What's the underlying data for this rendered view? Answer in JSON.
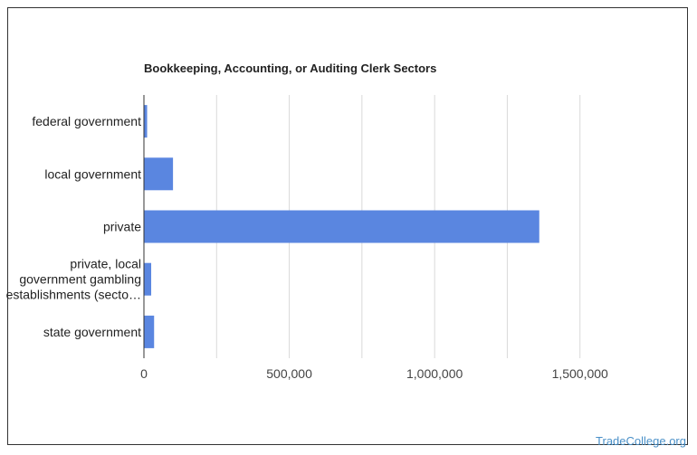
{
  "chart_data": {
    "type": "bar",
    "orientation": "horizontal",
    "title": "Bookkeeping, Accounting, or Auditing Clerk Sectors",
    "categories": [
      [
        "federal government"
      ],
      [
        "local government"
      ],
      [
        "private"
      ],
      [
        "private, local",
        "government gambling",
        "establishments (secto…"
      ],
      [
        "state government"
      ]
    ],
    "values": [
      11000,
      100000,
      1360000,
      25000,
      35000
    ],
    "xlim": [
      0,
      1750000
    ],
    "xticks": [
      0,
      500000,
      1000000,
      1500000
    ],
    "xtick_labels": [
      "0",
      "500,000",
      "1,000,000",
      "1,500,000"
    ],
    "grid": true,
    "bar_color": "#5a86e0"
  },
  "watermark": "TradeCollege.org"
}
